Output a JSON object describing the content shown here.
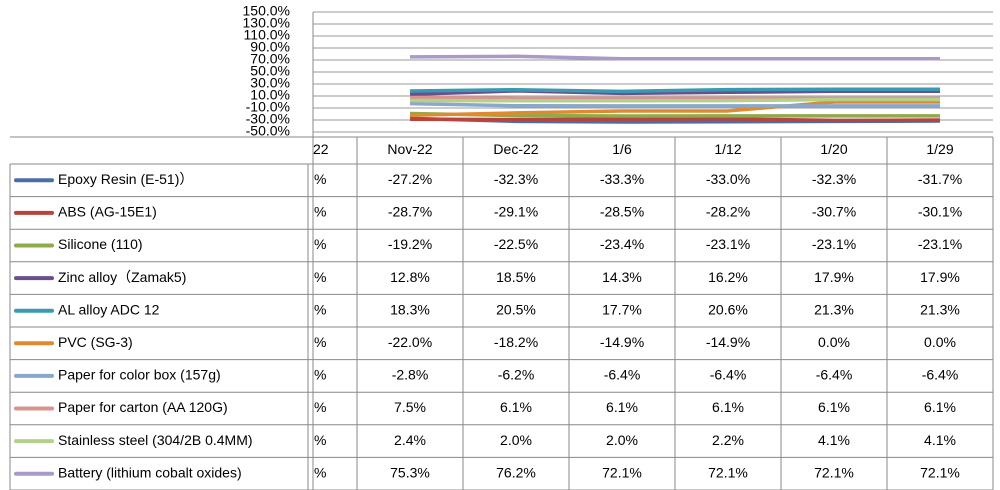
{
  "chart_data": {
    "type": "line",
    "categories": [
      "Nov-22",
      "Dec-22",
      "1/6",
      "1/12",
      "1/20",
      "1/29"
    ],
    "ylim": [
      -50,
      150
    ],
    "yticks": [
      {
        "value": -50,
        "label": "-50.0%"
      },
      {
        "value": -30,
        "label": "-30.0%"
      },
      {
        "value": -10,
        "label": "-10.0%"
      },
      {
        "value": 10,
        "label": "10.0%"
      },
      {
        "value": 30,
        "label": "30.0%"
      },
      {
        "value": 50,
        "label": "50.0%"
      },
      {
        "value": 70,
        "label": "70.0%"
      },
      {
        "value": 90,
        "label": "90.0%"
      },
      {
        "value": 110,
        "label": "110.0%"
      },
      {
        "value": 130,
        "label": "130.0%"
      },
      {
        "value": 150,
        "label": "150.0%"
      }
    ],
    "grid": true,
    "series": [
      {
        "name": "Epoxy Resin (E-51)）",
        "color": "#4a6fa5",
        "values": [
          -27.2,
          -32.3,
          -33.3,
          -33.0,
          -32.3,
          -31.7
        ],
        "value_labels": [
          "-27.2%",
          "-32.3%",
          "-33.3%",
          "-33.0%",
          "-32.3%",
          "-31.7%"
        ]
      },
      {
        "name": "ABS (AG-15E1)",
        "color": "#b7443e",
        "values": [
          -28.7,
          -29.1,
          -28.5,
          -28.2,
          -30.7,
          -30.1
        ],
        "value_labels": [
          "-28.7%",
          "-29.1%",
          "-28.5%",
          "-28.2%",
          "-30.7%",
          "-30.1%"
        ]
      },
      {
        "name": "Silicone (110)",
        "color": "#8faa4a",
        "values": [
          -19.2,
          -22.5,
          -23.4,
          -23.1,
          -23.1,
          -23.1
        ],
        "value_labels": [
          "-19.2%",
          "-22.5%",
          "-23.4%",
          "-23.1%",
          "-23.1%",
          "-23.1%"
        ]
      },
      {
        "name": "Zinc alloy（Zamak5)",
        "color": "#6a4f8a",
        "values": [
          12.8,
          18.5,
          14.3,
          16.2,
          17.9,
          17.9
        ],
        "value_labels": [
          "12.8%",
          "18.5%",
          "14.3%",
          "16.2%",
          "17.9%",
          "17.9%"
        ]
      },
      {
        "name": "AL alloy ADC 12",
        "color": "#3a9bb0",
        "values": [
          18.3,
          20.5,
          17.7,
          20.6,
          21.3,
          21.3
        ],
        "value_labels": [
          "18.3%",
          "20.5%",
          "17.7%",
          "20.6%",
          "21.3%",
          "21.3%"
        ]
      },
      {
        "name": "PVC (SG-3)",
        "color": "#e08a30",
        "values": [
          -22.0,
          -18.2,
          -14.9,
          -14.9,
          0.0,
          0.0
        ],
        "value_labels": [
          "-22.0%",
          "-18.2%",
          "-14.9%",
          "-14.9%",
          "0.0%",
          "0.0%"
        ]
      },
      {
        "name": "Paper for color box (157g)",
        "color": "#8aa8cc",
        "values": [
          -2.8,
          -6.2,
          -6.4,
          -6.4,
          -6.4,
          -6.4
        ],
        "value_labels": [
          "-2.8%",
          "-6.2%",
          "-6.4%",
          "-6.4%",
          "-6.4%",
          "-6.4%"
        ]
      },
      {
        "name": "Paper for carton (AA 120G)",
        "color": "#d99490",
        "values": [
          7.5,
          6.1,
          6.1,
          6.1,
          6.1,
          6.1
        ],
        "value_labels": [
          "7.5%",
          "6.1%",
          "6.1%",
          "6.1%",
          "6.1%",
          "6.1%"
        ]
      },
      {
        "name": "Stainless steel (304/2B 0.4MM)",
        "color": "#b5d08a",
        "values": [
          2.4,
          2.0,
          2.0,
          2.2,
          4.1,
          4.1
        ],
        "value_labels": [
          "2.4%",
          "2.0%",
          "2.0%",
          "2.2%",
          "4.1%",
          "4.1%"
        ]
      },
      {
        "name": "Battery (lithium cobalt oxides)",
        "color": "#a99ac8",
        "values": [
          75.3,
          76.2,
          72.1,
          72.1,
          72.1,
          72.1
        ],
        "value_labels": [
          "75.3%",
          "76.2%",
          "72.1%",
          "72.1%",
          "72.1%",
          "72.1%"
        ]
      }
    ]
  },
  "clipped_column": {
    "header": "22",
    "cells": [
      "%",
      "%",
      "%",
      "%",
      "%",
      "%",
      "%",
      "%",
      "%",
      "%"
    ]
  }
}
